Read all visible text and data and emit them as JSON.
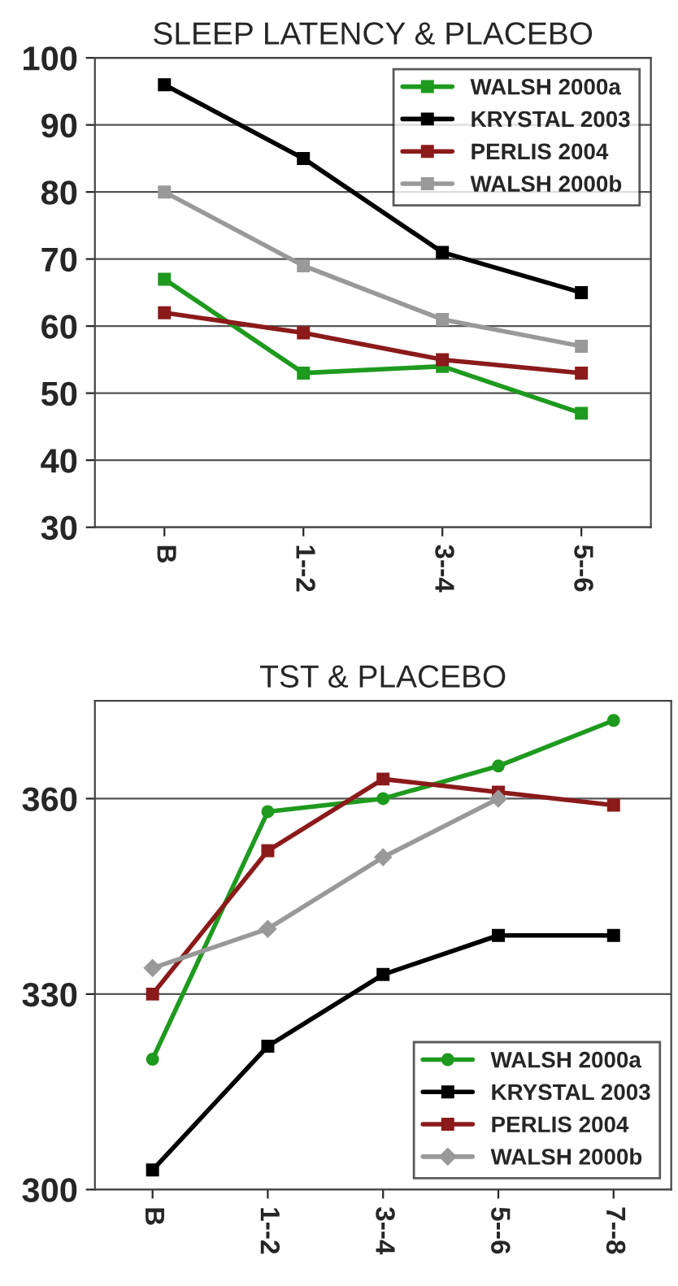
{
  "chart_data": [
    {
      "type": "line",
      "title": "SLEEP LATENCY & PLACEBO",
      "categories": [
        "B",
        "1--2",
        "3--4",
        "5--6"
      ],
      "ylim": [
        30,
        100
      ],
      "yticks": [
        30,
        40,
        50,
        60,
        70,
        80,
        90,
        100
      ],
      "grid": "y",
      "legend": "top right",
      "marker": "square",
      "series": [
        {
          "name": "WALSH 2000a",
          "color": "#1e9a1e",
          "values": [
            67,
            53,
            54,
            47
          ]
        },
        {
          "name": "KRYSTAL 2003",
          "color": "#000000",
          "values": [
            96,
            85,
            71,
            65
          ]
        },
        {
          "name": "PERLIS 2004",
          "color": "#8b1a1a",
          "values": [
            62,
            59,
            55,
            53
          ]
        },
        {
          "name": "WALSH 2000b",
          "color": "#999999",
          "values": [
            80,
            69,
            61,
            57
          ]
        }
      ]
    },
    {
      "type": "line",
      "title": "TST & PLACEBO",
      "categories": [
        "B",
        "1--2",
        "3--4",
        "5--6",
        "7--8"
      ],
      "ylim": [
        300,
        375
      ],
      "yticks": [
        300,
        330,
        360
      ],
      "grid": "y",
      "legend": "bottom right",
      "series": [
        {
          "name": "WALSH 2000a",
          "color": "#1e9a1e",
          "marker": "circle",
          "values": [
            320,
            358,
            360,
            365,
            372
          ]
        },
        {
          "name": "KRYSTAL 2003",
          "color": "#000000",
          "marker": "square",
          "values": [
            303,
            322,
            333,
            339,
            339
          ]
        },
        {
          "name": "PERLIS 2004",
          "color": "#8b1a1a",
          "marker": "square",
          "values": [
            330,
            352,
            363,
            361,
            359
          ]
        },
        {
          "name": "WALSH 2000b",
          "color": "#999999",
          "marker": "diamond",
          "values": [
            334,
            340,
            351,
            360,
            null
          ]
        }
      ]
    }
  ]
}
